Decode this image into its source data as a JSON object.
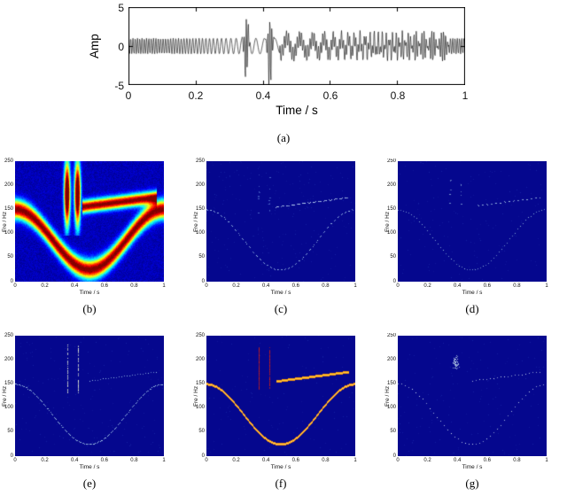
{
  "figure": {
    "background": "#ffffff"
  },
  "ridges": {
    "fm": {
      "f_center_hz": 87.5,
      "f_dev_hz": 62.5,
      "mod_period_s": 1
    },
    "chirp": {
      "t_start": 0.45,
      "t_end": 0.95,
      "f_start_hz": 155,
      "f_end_hz": 175
    },
    "impulses": {
      "times_s": [
        0.35,
        0.42
      ],
      "f_min_hz": 130,
      "f_max_hz": 235
    }
  },
  "chart_data": [
    {
      "id": "a",
      "type": "line",
      "caption": "(a)",
      "xlabel": "Time / s",
      "ylabel": "Amp",
      "xlim": [
        0,
        1
      ],
      "ylim": [
        -5,
        5
      ],
      "xtick_labels": [
        "0",
        "0.2",
        "0.4",
        "0.6",
        "0.8",
        "1"
      ],
      "ytick_labels": [
        "5",
        "0",
        "-5"
      ],
      "line_color": "#000000",
      "signal": {
        "fm_tone": {
          "amplitude": 1,
          "f_center_hz": 87.5,
          "f_dev_hz": 62.5,
          "mod_period_s": 1
        },
        "chirp": {
          "amplitude": 1,
          "t_start": 0.45,
          "t_end": 0.95,
          "f_start_hz": 155,
          "f_end_hz": 175
        },
        "impulses": [
          {
            "time_s": 0.35,
            "peak_amp": 3.9,
            "carrier_hz": 170,
            "width_s": 0.005
          },
          {
            "time_s": 0.42,
            "peak_amp": 4.7,
            "carrier_hz": 170,
            "width_s": 0.005
          }
        ]
      }
    },
    {
      "id": "b",
      "type": "heatmap",
      "caption": "(b)",
      "xlabel": "Time / s",
      "ylabel": "Fre / Hz",
      "xlim": [
        0,
        1
      ],
      "ylim": [
        0,
        250
      ],
      "xtick_labels": [
        "0",
        "0.2",
        "0.4",
        "0.6",
        "0.8",
        "1"
      ],
      "ytick_labels": [
        "0",
        "50",
        "100",
        "150",
        "200",
        "250"
      ],
      "colormap": "jet",
      "render": {
        "mode": "spectrogram",
        "fm_sigma_hz": 14,
        "chirp_sigma_hz": 9,
        "impulse_sigma_s": 0.014,
        "impulse_band": [
          125,
          238
        ],
        "noise": 0.07,
        "seed": 5
      }
    },
    {
      "id": "c",
      "type": "heatmap",
      "caption": "(c)",
      "xlabel": "Time / s",
      "ylabel": "Fre / Hz",
      "xlim": [
        0,
        1
      ],
      "ylim": [
        0,
        250
      ],
      "xtick_labels": [
        "0",
        "0.2",
        "0.4",
        "0.6",
        "0.8",
        "1"
      ],
      "ytick_labels": [
        "0",
        "50",
        "100",
        "150",
        "200",
        "250"
      ],
      "colormap": "jet",
      "render": {
        "mode": "ridge",
        "seed": 11,
        "background": "#05078e",
        "speckle": 230,
        "speckle_color": "#1a2aa8",
        "fm": {
          "color": "#a8cdf0",
          "dash": [
            2,
            2
          ],
          "width": 1,
          "jitter": 1
        },
        "chirp": {
          "color": "#c2dcf6",
          "dash": [
            4,
            2
          ],
          "width": 1,
          "jitter": 0.8,
          "t_start": 0.45
        },
        "impulses": {
          "color": "#4a66c8",
          "density": 0.18,
          "f_min": 140,
          "f_max": 225
        }
      }
    },
    {
      "id": "d",
      "type": "heatmap",
      "caption": "(d)",
      "xlabel": "Time / s",
      "ylabel": "Fre / Hz",
      "xlim": [
        0,
        1
      ],
      "ylim": [
        0,
        250
      ],
      "xtick_labels": [
        "0",
        "0.2",
        "0.4",
        "0.6",
        "0.8",
        "1"
      ],
      "ytick_labels": [
        "0",
        "50",
        "100",
        "150",
        "200",
        "250"
      ],
      "colormap": "jet",
      "render": {
        "mode": "ridge",
        "seed": 12,
        "background": "#05078e",
        "speckle": 160,
        "speckle_color": "#1a2aa8",
        "fm": {
          "color": "#93badd",
          "dash": [
            1,
            2
          ],
          "width": 1,
          "jitter": 1
        },
        "chirp": {
          "color": "#a9c9e8",
          "dash": [
            2,
            3
          ],
          "width": 1,
          "jitter": 0.8,
          "t_start": 0.52
        },
        "impulses": {
          "color": "#7e9fd4",
          "density": 0.1,
          "f_min": 150,
          "f_max": 215
        }
      }
    },
    {
      "id": "e",
      "type": "heatmap",
      "caption": "(e)",
      "xlabel": "Time / s",
      "ylabel": "Fre / Hz",
      "xlim": [
        0,
        1
      ],
      "ylim": [
        0,
        250
      ],
      "xtick_labels": [
        "0",
        "0.2",
        "0.4",
        "0.6",
        "0.8",
        "1"
      ],
      "ytick_labels": [
        "0",
        "50",
        "100",
        "150",
        "200",
        "250"
      ],
      "colormap": "jet",
      "render": {
        "mode": "ridge",
        "seed": 13,
        "background": "#05078e",
        "speckle": 200,
        "speckle_color": "#1a2aa8",
        "fm": {
          "color": "#abd2ec",
          "dash": [
            3,
            1
          ],
          "width": 1,
          "jitter": 0.8
        },
        "chirp": {
          "color": "#9fc6e8",
          "dash": [
            1,
            2
          ],
          "width": 1,
          "jitter": 0.8,
          "t_start": 0.5
        },
        "impulses": {
          "color": "#e9f0d4",
          "density": 0.75,
          "f_min": 133,
          "f_max": 232
        }
      }
    },
    {
      "id": "f",
      "type": "heatmap",
      "caption": "(f)",
      "xlabel": "Time / s",
      "ylabel": "Fre / Hz",
      "xlim": [
        0,
        1
      ],
      "ylim": [
        0,
        250
      ],
      "xtick_labels": [
        "0",
        "0.2",
        "0.4",
        "0.6",
        "0.8",
        "1"
      ],
      "ytick_labels": [
        "0",
        "50",
        "100",
        "150",
        "200",
        "250"
      ],
      "colormap": "jet",
      "render": {
        "mode": "ridge",
        "seed": 14,
        "background": "#05078e",
        "speckle": 130,
        "speckle_color": "#1a2aa8",
        "fm": {
          "color": "#f08a12",
          "core": "#ffd34f",
          "dash": [
            99,
            0
          ],
          "width": 2,
          "jitter": 0
        },
        "chirp": {
          "color": "#f2920f",
          "core": "#ffcf3e",
          "dash": [
            99,
            0
          ],
          "width": 2,
          "jitter": 0,
          "t_start": 0.47
        },
        "impulses": {
          "color": "#d81f0f",
          "density": 0.92,
          "f_min": 140,
          "f_max": 226
        }
      }
    },
    {
      "id": "g",
      "type": "heatmap",
      "caption": "(g)",
      "xlabel": "Time / s",
      "ylabel": "Fre / Hz",
      "xlim": [
        0,
        1
      ],
      "ylim": [
        0,
        250
      ],
      "xtick_labels": [
        "0",
        "0.2",
        "0.4",
        "0.6",
        "0.8",
        "1"
      ],
      "ytick_labels": [
        "0",
        "50",
        "100",
        "150",
        "200",
        "250"
      ],
      "colormap": "jet",
      "render": {
        "mode": "ridge",
        "seed": 15,
        "background": "#05078e",
        "speckle": 170,
        "speckle_color": "#1a2aa8",
        "fm": {
          "color": "#cfe2f2",
          "dash": [
            1,
            3
          ],
          "width": 1,
          "jitter": 1
        },
        "chirp": {
          "color": "#cfe2f2",
          "dash": [
            1,
            3
          ],
          "width": 1,
          "jitter": 1,
          "t_start": 0.5
        },
        "scatter": {
          "color": "#bcd4ea",
          "count": 55,
          "t_center": 0.39,
          "t_spread": 0.035,
          "f_center": 194,
          "f_spread": 18
        }
      }
    }
  ]
}
